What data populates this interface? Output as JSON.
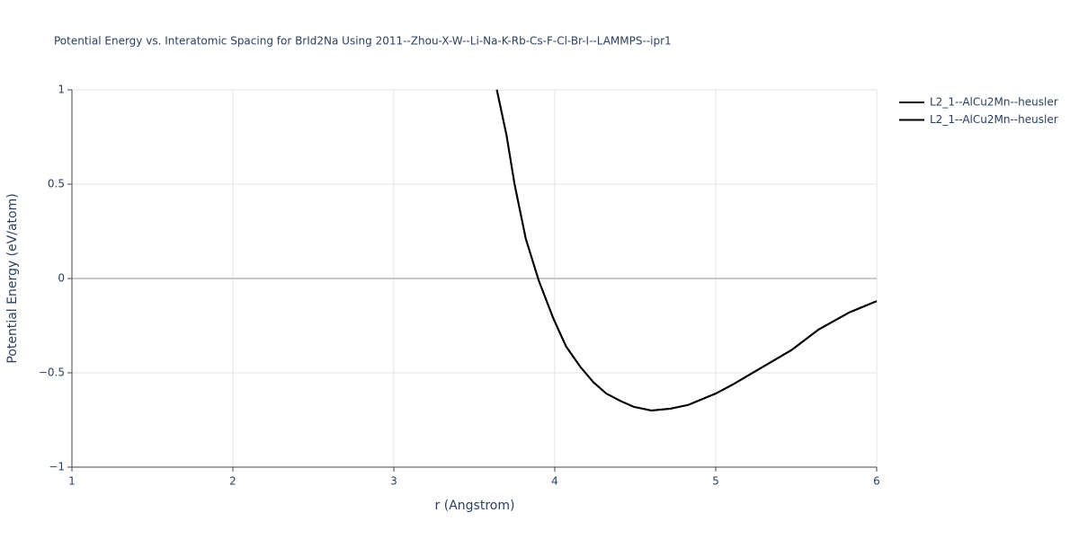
{
  "chart_data": {
    "type": "line",
    "title": "Potential Energy vs. Interatomic Spacing for BrId2Na Using 2011--Zhou-X-W--Li-Na-K-Rb-Cs-F-Cl-Br-I--LAMMPS--ipr1",
    "x_label": "r (Angstrom)",
    "y_label": "Potential Energy (eV/atom)",
    "x": [
      3.64,
      3.7,
      3.75,
      3.82,
      3.9,
      3.99,
      4.07,
      4.16,
      4.24,
      4.32,
      4.41,
      4.49,
      4.6,
      4.72,
      4.83,
      5.0,
      5.11,
      5.27,
      5.47,
      5.64,
      5.83,
      6.0
    ],
    "series": [
      {
        "name": "L2_1--AlCu2Mn--heusler",
        "color": "#000000",
        "values": [
          1.0,
          0.76,
          0.5,
          0.21,
          -0.01,
          -0.21,
          -0.36,
          -0.47,
          -0.55,
          -0.61,
          -0.65,
          -0.68,
          -0.7,
          -0.69,
          -0.67,
          -0.61,
          -0.56,
          -0.48,
          -0.38,
          -0.27,
          -0.18,
          -0.12
        ]
      },
      {
        "name": "L2_1--AlCu2Mn--heusler",
        "color": "#000000",
        "values": [
          1.0,
          0.76,
          0.5,
          0.21,
          -0.01,
          -0.21,
          -0.36,
          -0.47,
          -0.55,
          -0.61,
          -0.65,
          -0.68,
          -0.7,
          -0.69,
          -0.67,
          -0.61,
          -0.56,
          -0.48,
          -0.38,
          -0.27,
          -0.18,
          -0.12
        ]
      }
    ],
    "xlim": [
      1,
      6
    ],
    "xticks": [
      1,
      2,
      3,
      4,
      5,
      6
    ],
    "ylim": [
      -1,
      1
    ],
    "yticks": [
      {
        "value": -1,
        "label": "−1"
      },
      {
        "value": -0.5,
        "label": "−0.5"
      },
      0,
      0.5,
      1
    ],
    "grid": true,
    "legend": "outside-top-right"
  }
}
